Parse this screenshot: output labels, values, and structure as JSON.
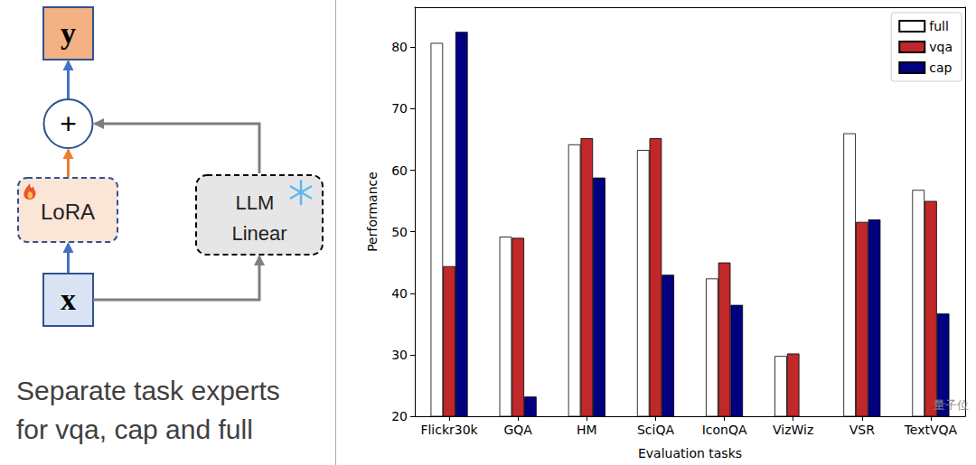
{
  "diagram": {
    "nodes": {
      "output": "y",
      "sum": "+",
      "adapter": "LoRA",
      "frozen": [
        "LLM",
        "Linear"
      ],
      "input": "x"
    },
    "caption": [
      "Separate task experts",
      "for vqa, cap and full"
    ]
  },
  "chart_data": {
    "type": "bar",
    "categories": [
      "Flickr30k",
      "GQA",
      "HM",
      "SciQA",
      "IconQA",
      "VizWiz",
      "VSR",
      "TextVQA"
    ],
    "series": [
      {
        "name": "full",
        "color": "#ffffff",
        "values": [
          80.7,
          49.2,
          64.2,
          63.3,
          42.4,
          29.8,
          66.0,
          56.8
        ]
      },
      {
        "name": "vqa",
        "color": "#c0282a",
        "values": [
          44.4,
          49.0,
          65.2,
          65.2,
          45.0,
          30.2,
          51.6,
          55.0
        ]
      },
      {
        "name": "cap",
        "color": "#000080",
        "values": [
          82.5,
          23.2,
          58.8,
          43.0,
          38.1,
          null,
          52.0,
          36.7
        ]
      }
    ],
    "x_label": "Evaluation tasks",
    "y_label": "Performance",
    "ylim": [
      20,
      86.5
    ],
    "yticks": [
      20,
      30,
      40,
      50,
      60,
      70,
      80
    ],
    "grid": false,
    "legend": "upper right",
    "data_labels": false
  },
  "watermark": "量子位"
}
